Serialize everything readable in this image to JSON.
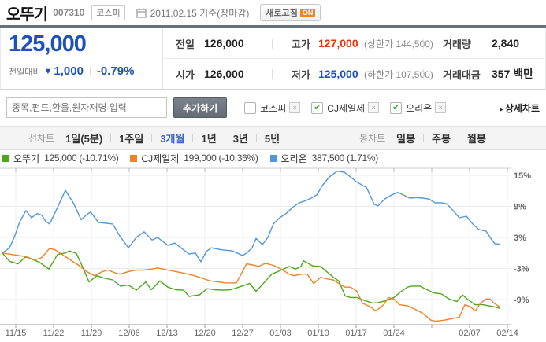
{
  "header": {
    "title": "오뚜기",
    "stock_code": "007310",
    "market_badge": "코스피",
    "date_text": "2011.02.15 기준(장마감)",
    "refresh_label": "새로고침",
    "refresh_state": "ON"
  },
  "price_panel": {
    "current_price": "125,000",
    "change_label": "전일대비",
    "change_direction": "▼",
    "change_value": "1,000",
    "change_pct": "-0.79%",
    "prev_close_label": "전일",
    "prev_close": "126,000",
    "high_label": "고가",
    "high": "127,000",
    "high_limit": "(상한가 144,500)",
    "open_label": "시가",
    "open": "126,000",
    "low_label": "저가",
    "low": "125,000",
    "low_limit": "(하한가 107,500)",
    "volume_label": "거래량",
    "volume": "2,840",
    "amount_label": "거래대금",
    "amount": "357 백만"
  },
  "compare_bar": {
    "search_placeholder": "종목,펀드,환율,원자재명 입력",
    "add_button": "추가하기",
    "items": [
      {
        "label": "코스피",
        "checked": false
      },
      {
        "label": "CJ제일제",
        "checked": true
      },
      {
        "label": "오리온",
        "checked": true
      }
    ],
    "detail_chart_link": "상세차트"
  },
  "period_tabs": {
    "line_label": "선차트",
    "line_tabs": [
      "1일(5분)",
      "1주일",
      "3개월",
      "1년",
      "3년",
      "5년"
    ],
    "selected": "3개월",
    "candle_label": "봉차트",
    "candle_tabs": [
      "일봉",
      "주봉",
      "월봉"
    ]
  },
  "chart_data": {
    "type": "line",
    "description": "3-month relative performance (%) comparison, 2010-11-15 to 2011-02-14",
    "x_labels": [
      "11/15",
      "11/22",
      "11/29",
      "12/06",
      "12/13",
      "12/20",
      "12/27",
      "01/03",
      "01/10",
      "01/17",
      "01/24",
      "",
      "02/07",
      "02/14"
    ],
    "y_ticks": [
      15,
      9,
      3,
      -3,
      -9
    ],
    "y_unit": "%",
    "ylim": [
      -14,
      16.5
    ],
    "grid": true,
    "legend_position": "top-left",
    "series": [
      {
        "name": "오뚜기",
        "legend_value": "125,000 (-10.71%)",
        "last_price": "125,000",
        "change_pct": "-10.71%",
        "color": "#4ca819",
        "points": [
          [
            3,
            0
          ],
          [
            12,
            -1.6
          ],
          [
            23,
            -2.1
          ],
          [
            32,
            -0.8
          ],
          [
            38,
            -1.0
          ],
          [
            50,
            -1.8
          ],
          [
            62,
            -3.1
          ],
          [
            73,
            -0.3
          ],
          [
            83,
            0.0
          ],
          [
            88,
            0.4
          ],
          [
            97,
            -0.1
          ],
          [
            103,
            -2.1
          ],
          [
            113,
            -5.6
          ],
          [
            123,
            -4.4
          ],
          [
            133,
            -4.9
          ],
          [
            143,
            -5.2
          ],
          [
            153,
            -6.4
          ],
          [
            163,
            -6.2
          ],
          [
            173,
            -7.2
          ],
          [
            185,
            -5.6
          ],
          [
            192,
            -7.1
          ],
          [
            203,
            -5.4
          ],
          [
            213,
            -6.6
          ],
          [
            223,
            -7.1
          ],
          [
            233,
            -7.2
          ],
          [
            240,
            -8.4
          ],
          [
            253,
            -8.1
          ],
          [
            263,
            -6.9
          ],
          [
            273,
            -7.1
          ],
          [
            283,
            -7.2
          ],
          [
            293,
            -7.1
          ],
          [
            307,
            -6.4
          ],
          [
            317,
            -5.9
          ],
          [
            325,
            -7.4
          ],
          [
            330,
            -6.6
          ],
          [
            345,
            -4.1
          ],
          [
            357,
            -3.3
          ],
          [
            367,
            -2.6
          ],
          [
            375,
            -3.1
          ],
          [
            382,
            -2.6
          ],
          [
            385,
            -1.5
          ],
          [
            397,
            -2.5
          ],
          [
            407,
            -2.6
          ],
          [
            413,
            -3.4
          ],
          [
            423,
            -4.7
          ],
          [
            430,
            -5.4
          ],
          [
            438,
            -8.3
          ],
          [
            445,
            -8.6
          ],
          [
            453,
            -8.6
          ],
          [
            463,
            -9.2
          ],
          [
            473,
            -9.7
          ],
          [
            480,
            -9.6
          ],
          [
            490,
            -9.2
          ],
          [
            500,
            -8.6
          ],
          [
            507,
            -7.7
          ],
          [
            517,
            -6.6
          ],
          [
            523,
            -6.4
          ],
          [
            533,
            -6.4
          ],
          [
            542,
            -7.1
          ],
          [
            550,
            -7.7
          ],
          [
            560,
            -7.9
          ],
          [
            570,
            -8.9
          ],
          [
            580,
            -9.4
          ],
          [
            587,
            -8.1
          ],
          [
            593,
            -8.9
          ],
          [
            603,
            -10.0
          ],
          [
            613,
            -10.0
          ],
          [
            620,
            -10.2
          ],
          [
            627,
            -10.4
          ],
          [
            634,
            -10.7
          ]
        ]
      },
      {
        "name": "CJ제일제",
        "legend_value": "199,000 (-10.36%)",
        "last_price": "199,000",
        "change_pct": "-10.36%",
        "color": "#ef8224",
        "points": [
          [
            3,
            0
          ],
          [
            20,
            -0.4
          ],
          [
            33,
            -0.7
          ],
          [
            43,
            -1.4
          ],
          [
            53,
            -0.9
          ],
          [
            63,
            0.9
          ],
          [
            70,
            0.6
          ],
          [
            80,
            -0.4
          ],
          [
            90,
            -1.4
          ],
          [
            100,
            -2.4
          ],
          [
            110,
            -3.6
          ],
          [
            120,
            -4.4
          ],
          [
            130,
            -3.6
          ],
          [
            137,
            -3.3
          ],
          [
            147,
            -3.9
          ],
          [
            153,
            -4.1
          ],
          [
            163,
            -3.6
          ],
          [
            173,
            -3.3
          ],
          [
            183,
            -3.3
          ],
          [
            193,
            -3.1
          ],
          [
            200,
            -2.9
          ],
          [
            213,
            -3.3
          ],
          [
            223,
            -3.6
          ],
          [
            233,
            -3.9
          ],
          [
            247,
            -4.4
          ],
          [
            257,
            -4.9
          ],
          [
            267,
            -5.4
          ],
          [
            277,
            -5.6
          ],
          [
            287,
            -5.8
          ],
          [
            300,
            -5.8
          ],
          [
            313,
            -2.1
          ],
          [
            323,
            -2.4
          ],
          [
            328,
            -2.6
          ],
          [
            337,
            -2.0
          ],
          [
            347,
            -2.4
          ],
          [
            357,
            -3.1
          ],
          [
            367,
            -4.1
          ],
          [
            373,
            -4.4
          ],
          [
            383,
            -4.1
          ],
          [
            390,
            -4.1
          ],
          [
            398,
            -5.9
          ],
          [
            407,
            -4.7
          ],
          [
            415,
            -5.0
          ],
          [
            423,
            -5.2
          ],
          [
            433,
            -6.2
          ],
          [
            438,
            -6.6
          ],
          [
            445,
            -6.6
          ],
          [
            453,
            -7.4
          ],
          [
            460,
            -9.7
          ],
          [
            470,
            -10.4
          ],
          [
            477,
            -11.2
          ],
          [
            487,
            -10.0
          ],
          [
            493,
            -8.6
          ],
          [
            500,
            -8.9
          ],
          [
            507,
            -10.0
          ],
          [
            517,
            -10.2
          ],
          [
            527,
            -10.9
          ],
          [
            537,
            -11.7
          ],
          [
            547,
            -13.0
          ],
          [
            553,
            -13.2
          ],
          [
            563,
            -13.0
          ],
          [
            573,
            -12.7
          ],
          [
            583,
            -12.4
          ],
          [
            590,
            -10.0
          ],
          [
            597,
            -10.4
          ],
          [
            603,
            -11.2
          ],
          [
            610,
            -9.7
          ],
          [
            617,
            -8.9
          ],
          [
            622,
            -8.9
          ],
          [
            627,
            -9.7
          ],
          [
            634,
            -10.4
          ]
        ]
      },
      {
        "name": "오리온",
        "legend_value": "387,500 (1.71%)",
        "last_price": "387,500",
        "change_pct": "1.71%",
        "color": "#4f97dc",
        "points": [
          [
            3,
            0
          ],
          [
            12,
            1.0
          ],
          [
            18,
            3.0
          ],
          [
            25,
            6.0
          ],
          [
            33,
            8.2
          ],
          [
            40,
            6.8
          ],
          [
            47,
            7.6
          ],
          [
            53,
            7.3
          ],
          [
            58,
            6.1
          ],
          [
            63,
            5.6
          ],
          [
            73,
            8.8
          ],
          [
            83,
            12.1
          ],
          [
            93,
            9.7
          ],
          [
            103,
            6.4
          ],
          [
            110,
            7.4
          ],
          [
            115,
            7.9
          ],
          [
            125,
            5.9
          ],
          [
            143,
            5.6
          ],
          [
            152,
            3.3
          ],
          [
            163,
            1.0
          ],
          [
            173,
            3.0
          ],
          [
            183,
            4.1
          ],
          [
            193,
            2.5
          ],
          [
            200,
            3.0
          ],
          [
            213,
            1.5
          ],
          [
            222,
            1.9
          ],
          [
            233,
            0.6
          ],
          [
            240,
            -0.2
          ],
          [
            248,
            0.0
          ],
          [
            255,
            -1.7
          ],
          [
            262,
            0.3
          ],
          [
            268,
            1.0
          ],
          [
            282,
            0.6
          ],
          [
            295,
            0.4
          ],
          [
            308,
            -0.5
          ],
          [
            313,
            0.0
          ],
          [
            320,
            1.0
          ],
          [
            325,
            2.8
          ],
          [
            333,
            1.6
          ],
          [
            340,
            3.0
          ],
          [
            347,
            5.6
          ],
          [
            355,
            6.8
          ],
          [
            363,
            7.6
          ],
          [
            372,
            8.9
          ],
          [
            380,
            9.7
          ],
          [
            388,
            10.1
          ],
          [
            395,
            10.6
          ],
          [
            402,
            11.2
          ],
          [
            410,
            13.2
          ],
          [
            418,
            14.7
          ],
          [
            428,
            15.8
          ],
          [
            437,
            15.6
          ],
          [
            445,
            14.7
          ],
          [
            452,
            13.8
          ],
          [
            462,
            12.9
          ],
          [
            465,
            12.7
          ],
          [
            475,
            9.4
          ],
          [
            480,
            9.1
          ],
          [
            488,
            10.4
          ],
          [
            497,
            11.2
          ],
          [
            505,
            11.7
          ],
          [
            512,
            11.2
          ],
          [
            520,
            10.6
          ],
          [
            528,
            10.7
          ],
          [
            537,
            10.6
          ],
          [
            545,
            10.4
          ],
          [
            552,
            9.7
          ],
          [
            560,
            9.7
          ],
          [
            567,
            9.5
          ],
          [
            575,
            8.2
          ],
          [
            583,
            6.8
          ],
          [
            592,
            7.1
          ],
          [
            600,
            5.6
          ],
          [
            608,
            4.5
          ],
          [
            617,
            4.2
          ],
          [
            623,
            2.8
          ],
          [
            628,
            1.8
          ],
          [
            634,
            1.7
          ]
        ]
      }
    ]
  }
}
